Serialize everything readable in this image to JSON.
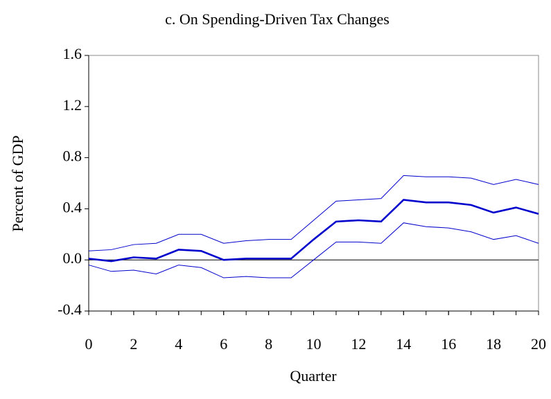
{
  "chart_data": {
    "type": "line",
    "title": "c.  On Spending-Driven Tax Changes",
    "x_label": "Quarter",
    "y_label": "Percent of GDP",
    "x": [
      0,
      1,
      2,
      3,
      4,
      5,
      6,
      7,
      8,
      9,
      10,
      11,
      12,
      13,
      14,
      15,
      16,
      17,
      18,
      19,
      20
    ],
    "series": [
      {
        "color": "#0000cc",
        "line_width": 2.6,
        "values": [
          0.01,
          -0.01,
          0.02,
          0.01,
          0.08,
          0.07,
          0.0,
          0.01,
          0.01,
          0.01,
          0.16,
          0.3,
          0.31,
          0.3,
          0.47,
          0.45,
          0.45,
          0.43,
          0.37,
          0.41,
          0.36
        ]
      },
      {
        "color": "#0000cc",
        "line_width": 1,
        "values": [
          0.07,
          0.08,
          0.12,
          0.13,
          0.2,
          0.2,
          0.13,
          0.15,
          0.16,
          0.16,
          0.31,
          0.46,
          0.47,
          0.48,
          0.66,
          0.65,
          0.65,
          0.64,
          0.59,
          0.63,
          0.59
        ]
      },
      {
        "color": "#0000cc",
        "line_width": 1,
        "values": [
          -0.04,
          -0.09,
          -0.08,
          -0.11,
          -0.04,
          -0.06,
          -0.14,
          -0.13,
          -0.14,
          -0.14,
          0.0,
          0.14,
          0.14,
          0.13,
          0.29,
          0.26,
          0.25,
          0.22,
          0.16,
          0.19,
          0.13
        ]
      }
    ],
    "xlim": [
      0,
      20
    ],
    "xticks": [
      0,
      2,
      4,
      6,
      8,
      10,
      12,
      14,
      16,
      18,
      20
    ],
    "ylim": [
      -0.4,
      1.6
    ],
    "yticks": [
      -0.4,
      {
        "value": 0,
        "label": "0.0"
      },
      0.4,
      0.8,
      1.2,
      1.6
    ]
  }
}
